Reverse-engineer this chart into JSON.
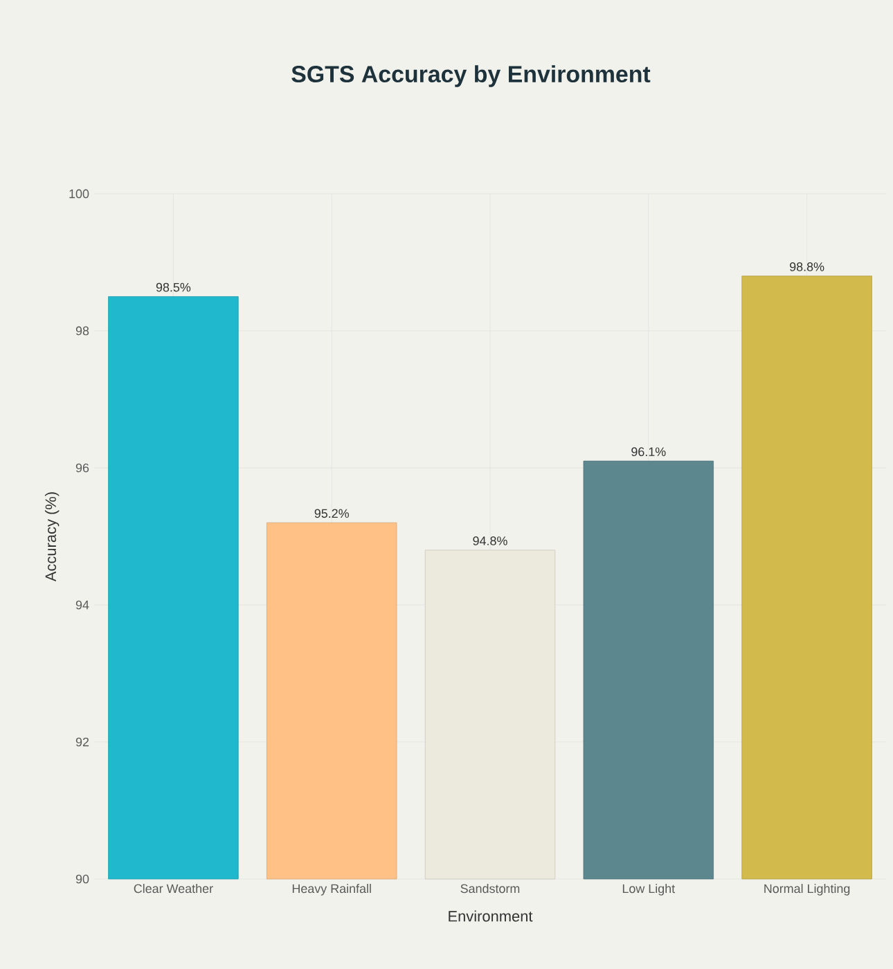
{
  "chart_data": {
    "type": "bar",
    "title": "SGTS Accuracy by Environment",
    "xlabel": "Environment",
    "ylabel": "Accuracy (%)",
    "categories": [
      "Clear Weather",
      "Heavy Rainfall",
      "Sandstorm",
      "Low Light",
      "Normal Lighting"
    ],
    "values": [
      98.5,
      95.2,
      94.8,
      96.1,
      98.8
    ],
    "colors": [
      "#1fb8cd",
      "#ffc185",
      "#eceadc",
      "#5d878f",
      "#d2ba4c"
    ],
    "value_labels": [
      "98.5%",
      "95.2%",
      "94.8%",
      "96.1%",
      "98.8%"
    ],
    "ylim": [
      90,
      100
    ],
    "yticks": [
      90,
      92,
      94,
      96,
      98,
      100
    ],
    "grid": true
  }
}
